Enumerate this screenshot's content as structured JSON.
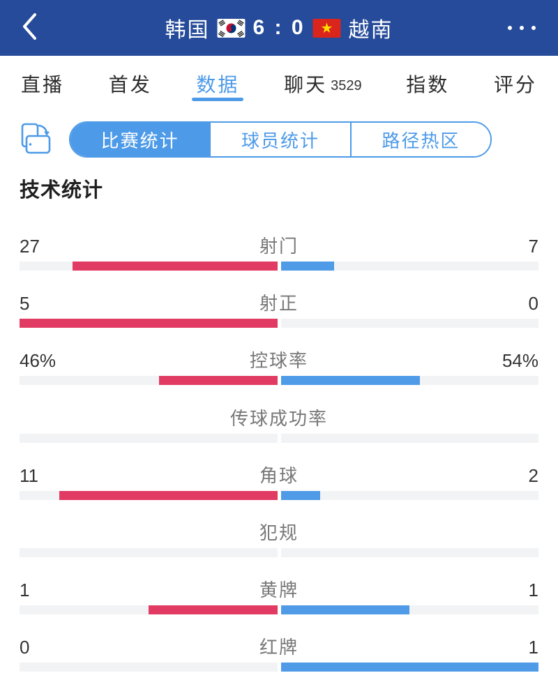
{
  "header": {
    "home_team": "韩国",
    "away_team": "越南",
    "score": "6 : 0",
    "back_icon": "chevron-left",
    "more_icon": "ellipsis",
    "home_flag": "south-korea-flag",
    "away_flag": "vietnam-flag"
  },
  "tabs": [
    {
      "label": "直播",
      "active": false
    },
    {
      "label": "首发",
      "active": false
    },
    {
      "label": "数据",
      "active": true
    },
    {
      "label": "聊天",
      "count": "3529",
      "active": false
    },
    {
      "label": "指数",
      "active": false
    },
    {
      "label": "评分",
      "active": false
    }
  ],
  "subtabs": {
    "rotate_icon": "rotate-screen-icon",
    "items": [
      {
        "label": "比赛统计",
        "active": true
      },
      {
        "label": "球员统计",
        "active": false
      },
      {
        "label": "路径热区",
        "active": false
      }
    ]
  },
  "section_title": "技术统计",
  "stats": {
    "rows": [
      {
        "label": "射门",
        "home": 27,
        "away": 7,
        "home_display": "27",
        "away_display": "7"
      },
      {
        "label": "射正",
        "home": 5,
        "away": 0,
        "home_display": "5",
        "away_display": "0"
      },
      {
        "label": "控球率",
        "home": 46,
        "away": 54,
        "home_display": "46%",
        "away_display": "54%"
      },
      {
        "label": "传球成功率",
        "home": null,
        "away": null,
        "home_display": "",
        "away_display": ""
      },
      {
        "label": "角球",
        "home": 11,
        "away": 2,
        "home_display": "11",
        "away_display": "2"
      },
      {
        "label": "犯规",
        "home": null,
        "away": null,
        "home_display": "",
        "away_display": ""
      },
      {
        "label": "黄牌",
        "home": 1,
        "away": 1,
        "home_display": "1",
        "away_display": "1"
      },
      {
        "label": "红牌",
        "home": 0,
        "away": 1,
        "home_display": "0",
        "away_display": "1"
      }
    ]
  },
  "chart_data": {
    "type": "bar",
    "title": "技术统计",
    "categories": [
      "射门",
      "射正",
      "控球率",
      "传球成功率",
      "角球",
      "犯规",
      "黄牌",
      "红牌"
    ],
    "series": [
      {
        "name": "韩国",
        "values": [
          27,
          5,
          46,
          null,
          11,
          null,
          1,
          0
        ]
      },
      {
        "name": "越南",
        "values": [
          7,
          0,
          54,
          null,
          2,
          null,
          1,
          1
        ]
      }
    ],
    "value_labels": {
      "韩国": [
        "27",
        "5",
        "46%",
        "",
        "11",
        "",
        "1",
        "0"
      ],
      "越南": [
        "7",
        "0",
        "54%",
        "",
        "2",
        "",
        "1",
        "1"
      ]
    },
    "layout": "dual-sided horizontal bars meeting at center; bar length = value / (home+away) of each half"
  },
  "colors": {
    "header_bg": "#264B9A",
    "accent": "#4D9AE8",
    "home_bar": "#E23B63",
    "away_bar": "#4F9BE8",
    "track": "#F2F3F5"
  }
}
